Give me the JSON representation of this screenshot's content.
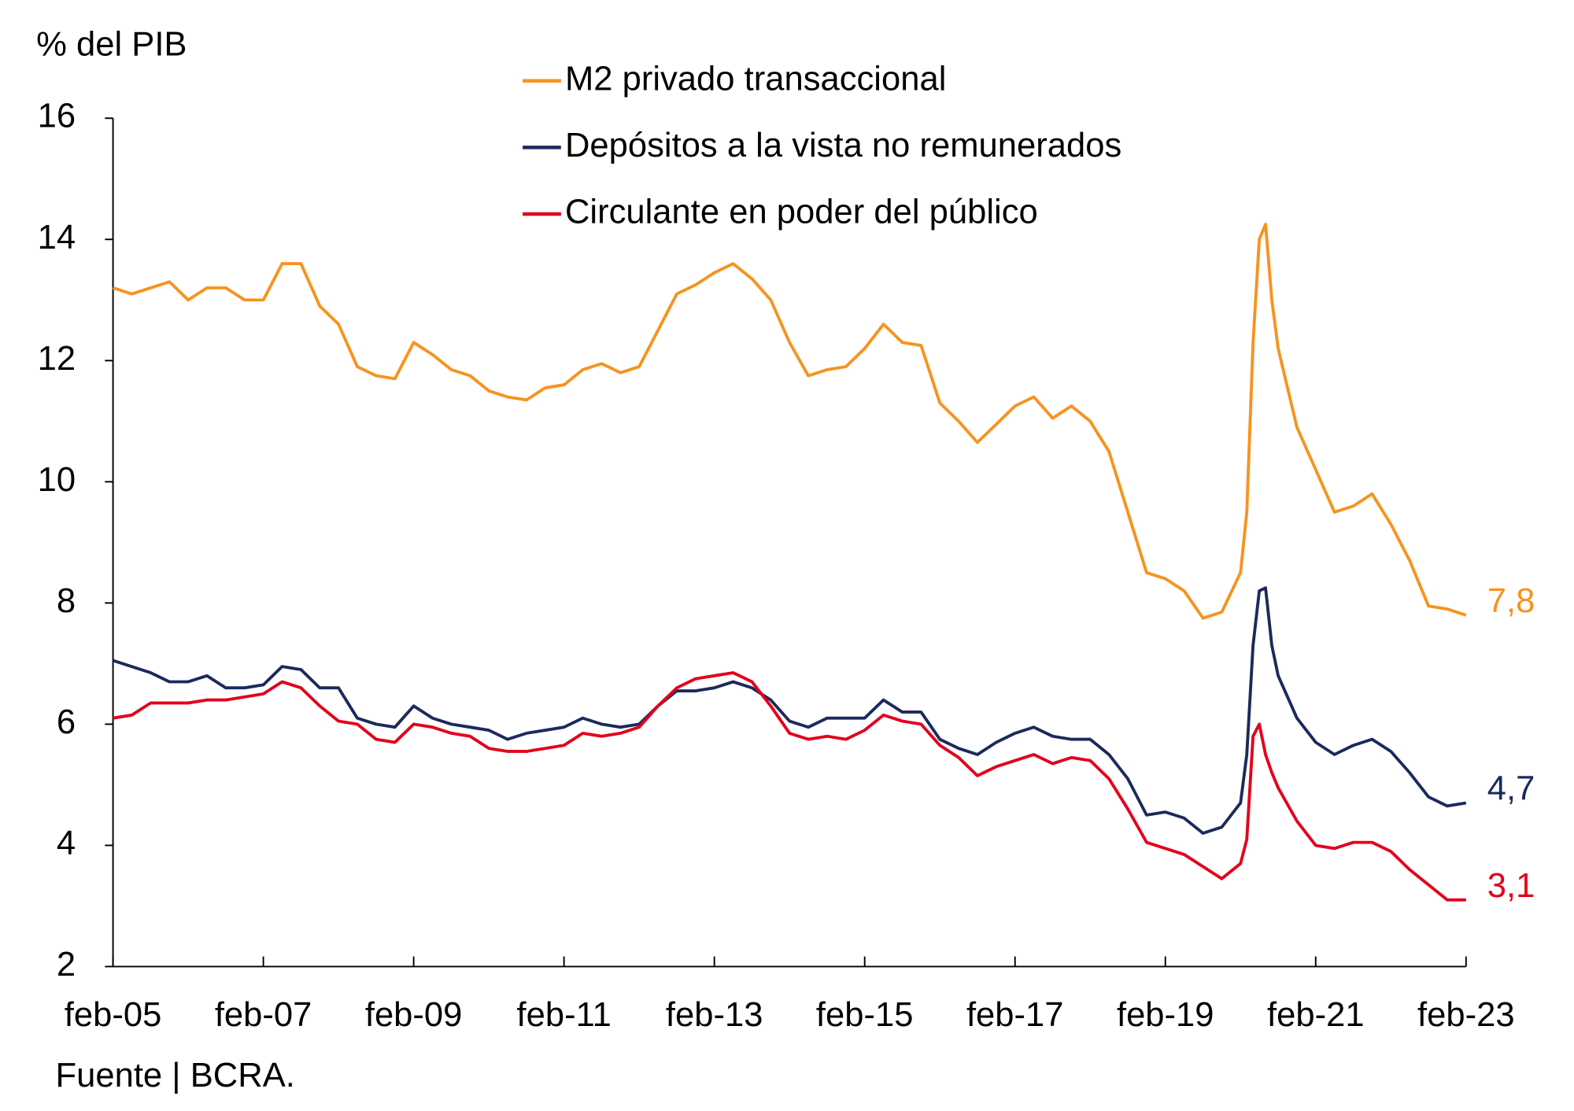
{
  "chart_data": {
    "type": "line",
    "y_label": "% del PIB",
    "source": "Fuente | BCRA.",
    "legend": "top-center",
    "x": [
      "feb-05",
      "may-05",
      "ago-05",
      "nov-05",
      "feb-06",
      "may-06",
      "ago-06",
      "nov-06",
      "feb-07",
      "may-07",
      "ago-07",
      "nov-07",
      "feb-08",
      "may-08",
      "ago-08",
      "nov-08",
      "feb-09",
      "may-09",
      "ago-09",
      "nov-09",
      "feb-10",
      "may-10",
      "ago-10",
      "nov-10",
      "feb-11",
      "may-11",
      "ago-11",
      "nov-11",
      "feb-12",
      "may-12",
      "ago-12",
      "nov-12",
      "feb-13",
      "may-13",
      "ago-13",
      "nov-13",
      "feb-14",
      "may-14",
      "ago-14",
      "nov-14",
      "feb-15",
      "may-15",
      "ago-15",
      "nov-15",
      "feb-16",
      "may-16",
      "ago-16",
      "nov-16",
      "feb-17",
      "may-17",
      "ago-17",
      "nov-17",
      "feb-18",
      "may-18",
      "ago-18",
      "nov-18",
      "feb-19",
      "may-19",
      "ago-19",
      "nov-19",
      "feb-20",
      "mar-20",
      "abr-20",
      "may-20",
      "jun-20",
      "jul-20",
      "ago-20",
      "nov-20",
      "feb-21",
      "may-21",
      "ago-21",
      "nov-21",
      "feb-22",
      "may-22",
      "ago-22",
      "nov-22",
      "feb-23"
    ],
    "xlim": [
      "feb-05",
      "feb-23"
    ],
    "xticks": [
      "feb-05",
      "feb-07",
      "feb-09",
      "feb-11",
      "feb-13",
      "feb-15",
      "feb-17",
      "feb-19",
      "feb-21",
      "feb-23"
    ],
    "ylim": [
      2,
      16
    ],
    "yticks": [
      2,
      4,
      6,
      8,
      10,
      12,
      14,
      16
    ],
    "series": [
      {
        "name": "M2 privado transaccional",
        "color": "#f7931e",
        "last_label": "7,8",
        "values": [
          13.2,
          13.1,
          13.2,
          13.3,
          13.0,
          13.2,
          13.2,
          13.0,
          13.0,
          13.6,
          13.6,
          12.9,
          12.6,
          11.9,
          11.75,
          11.7,
          12.3,
          12.1,
          11.85,
          11.75,
          11.5,
          11.4,
          11.35,
          11.55,
          11.6,
          11.85,
          11.95,
          11.8,
          11.9,
          12.5,
          13.1,
          13.25,
          13.45,
          13.6,
          13.35,
          13.0,
          12.3,
          11.75,
          11.85,
          11.9,
          12.2,
          12.6,
          12.3,
          12.25,
          11.3,
          11.0,
          10.65,
          10.95,
          11.25,
          11.4,
          11.05,
          11.25,
          11.0,
          10.5,
          9.5,
          8.5,
          8.4,
          8.2,
          7.75,
          7.85,
          8.5,
          9.5,
          12.3,
          14.0,
          14.25,
          13.0,
          12.2,
          10.9,
          10.2,
          9.5,
          9.6,
          9.8,
          9.3,
          8.7,
          7.95,
          7.9,
          7.8
        ]
      },
      {
        "name": "Depósitos a la vista no remunerados",
        "color": "#1b2a5c",
        "last_label": "4,7",
        "values": [
          7.05,
          6.95,
          6.85,
          6.7,
          6.7,
          6.8,
          6.6,
          6.6,
          6.65,
          6.95,
          6.9,
          6.6,
          6.6,
          6.1,
          6.0,
          5.95,
          6.3,
          6.1,
          6.0,
          5.95,
          5.9,
          5.75,
          5.85,
          5.9,
          5.95,
          6.1,
          6.0,
          5.95,
          6.0,
          6.3,
          6.55,
          6.55,
          6.6,
          6.7,
          6.6,
          6.4,
          6.05,
          5.95,
          6.1,
          6.1,
          6.1,
          6.4,
          6.2,
          6.2,
          5.75,
          5.6,
          5.5,
          5.7,
          5.85,
          5.95,
          5.8,
          5.75,
          5.75,
          5.5,
          5.1,
          4.5,
          4.55,
          4.45,
          4.2,
          4.3,
          4.7,
          5.5,
          7.3,
          8.2,
          8.25,
          7.3,
          6.8,
          6.1,
          5.7,
          5.5,
          5.65,
          5.75,
          5.55,
          5.2,
          4.8,
          4.65,
          4.7
        ]
      },
      {
        "name": "Circulante en poder del público",
        "color": "#e3001b",
        "last_label": "3,1",
        "values": [
          6.1,
          6.15,
          6.35,
          6.35,
          6.35,
          6.4,
          6.4,
          6.45,
          6.5,
          6.7,
          6.6,
          6.3,
          6.05,
          6.0,
          5.75,
          5.7,
          6.0,
          5.95,
          5.85,
          5.8,
          5.6,
          5.55,
          5.55,
          5.6,
          5.65,
          5.85,
          5.8,
          5.85,
          5.95,
          6.3,
          6.6,
          6.75,
          6.8,
          6.85,
          6.7,
          6.3,
          5.85,
          5.75,
          5.8,
          5.75,
          5.9,
          6.15,
          6.05,
          6.0,
          5.65,
          5.45,
          5.15,
          5.3,
          5.4,
          5.5,
          5.35,
          5.45,
          5.4,
          5.1,
          4.6,
          4.05,
          3.95,
          3.85,
          3.65,
          3.45,
          3.7,
          4.1,
          5.8,
          6.0,
          5.5,
          5.2,
          4.95,
          4.4,
          4.0,
          3.95,
          4.05,
          4.05,
          3.9,
          3.6,
          3.35,
          3.1,
          3.1
        ]
      }
    ]
  }
}
